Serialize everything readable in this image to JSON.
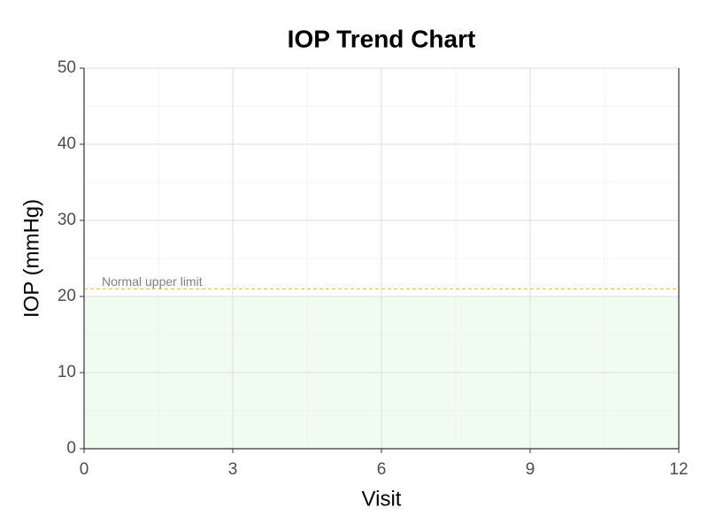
{
  "chart_data": {
    "type": "line",
    "title": "IOP Trend Chart",
    "x_label": "Visit",
    "y_label": "IOP (mmHg)",
    "series": [],
    "xlim": [
      0,
      12
    ],
    "xticks": [
      0,
      3,
      6,
      9,
      12
    ],
    "xminor": [
      1.5,
      4.5,
      7.5,
      10.5
    ],
    "ylim": [
      0,
      50
    ],
    "yticks": [
      0,
      10,
      20,
      30,
      40,
      50
    ],
    "yminor": [
      5,
      15,
      25,
      35,
      45
    ],
    "grid": true,
    "normal_band": {
      "range": [
        0,
        20
      ],
      "color": "#f0fcf0"
    },
    "reference_line": {
      "value": 21,
      "label": "Normal upper limit",
      "color": "#e6b84d"
    }
  }
}
